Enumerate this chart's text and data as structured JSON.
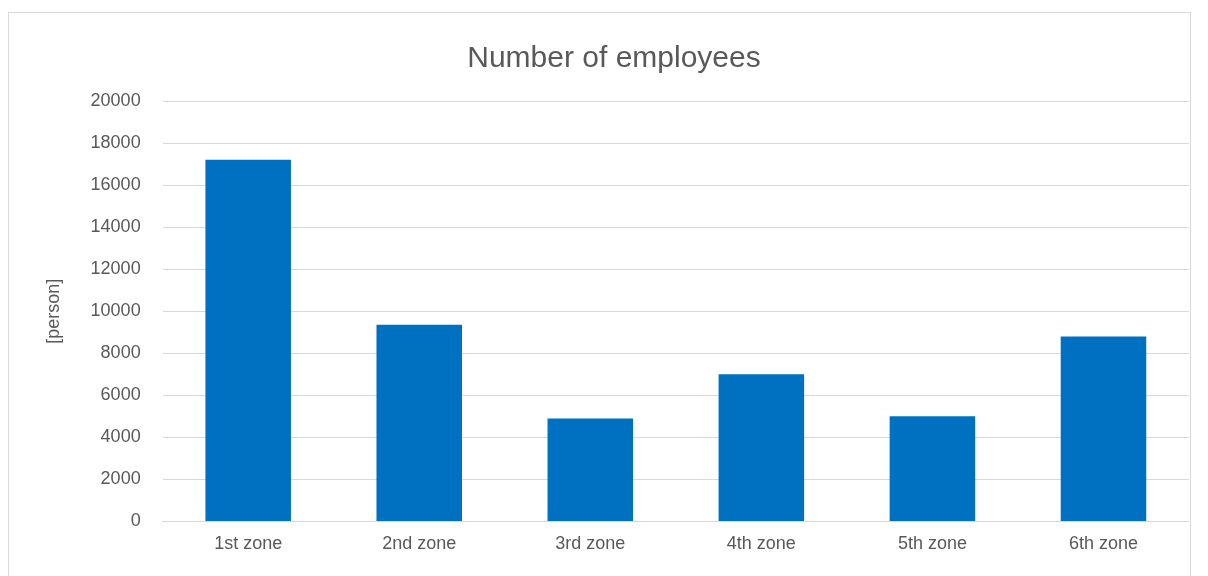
{
  "chart_data": {
    "type": "bar",
    "title": "Number of employees",
    "ylabel": "[person]",
    "categories": [
      "1st zone",
      "2nd zone",
      "3rd zone",
      "4th zone",
      "5th zone",
      "6th zone"
    ],
    "values": [
      17200,
      9350,
      4900,
      7000,
      5000,
      8800
    ],
    "color": "#0070c0",
    "ylim": [
      0,
      20000
    ],
    "yticks": [
      0,
      2000,
      4000,
      6000,
      8000,
      10000,
      12000,
      14000,
      16000,
      18000,
      20000
    ],
    "grid": "y",
    "legend": false
  }
}
